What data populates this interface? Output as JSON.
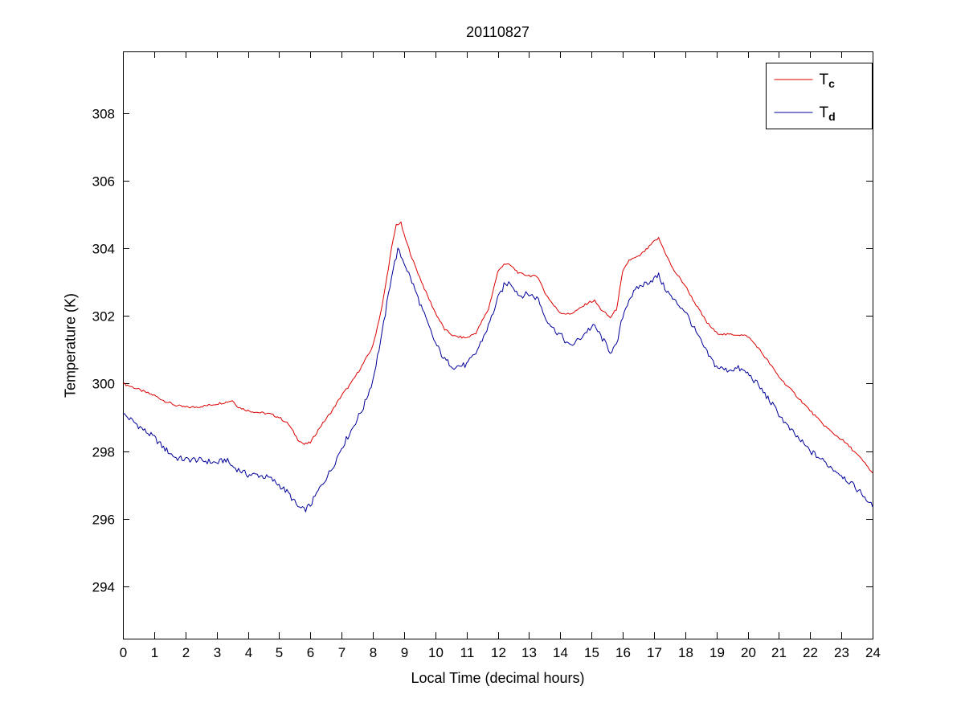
{
  "figure": {
    "background": "#ffffff"
  },
  "chart_data": {
    "type": "line",
    "title": "20110827",
    "xlabel": "Local Time (decimal hours)",
    "ylabel": "Temperature (K)",
    "xlim": [
      0,
      24
    ],
    "ylim": [
      292.45,
      309.83
    ],
    "xticks": [
      0,
      1,
      2,
      3,
      4,
      5,
      6,
      7,
      8,
      9,
      10,
      11,
      12,
      13,
      14,
      15,
      16,
      17,
      18,
      19,
      20,
      21,
      22,
      23,
      24
    ],
    "yticks": [
      294,
      296,
      298,
      300,
      302,
      304,
      306,
      308
    ],
    "grid": false,
    "legend_position": "top-right",
    "axis_color": "#000000",
    "series": [
      {
        "name": "T_c",
        "label_main": "T",
        "label_sub": "c",
        "color": "#dd0000",
        "noise_amp": 0.035,
        "points": [
          [
            0,
            300.0
          ],
          [
            0.3,
            299.9
          ],
          [
            0.7,
            299.75
          ],
          [
            1,
            299.65
          ],
          [
            1.3,
            299.5
          ],
          [
            1.7,
            299.35
          ],
          [
            2,
            299.3
          ],
          [
            2.3,
            299.3
          ],
          [
            2.7,
            299.35
          ],
          [
            3,
            299.4
          ],
          [
            3.3,
            299.45
          ],
          [
            3.5,
            299.5
          ],
          [
            3.7,
            299.3
          ],
          [
            4,
            299.2
          ],
          [
            4.3,
            299.15
          ],
          [
            4.7,
            299.1
          ],
          [
            5,
            299.0
          ],
          [
            5.3,
            298.8
          ],
          [
            5.6,
            298.35
          ],
          [
            5.8,
            298.2
          ],
          [
            6,
            298.25
          ],
          [
            6.3,
            298.7
          ],
          [
            6.7,
            299.2
          ],
          [
            7,
            299.65
          ],
          [
            7.3,
            300.0
          ],
          [
            7.7,
            300.6
          ],
          [
            8,
            301.1
          ],
          [
            8.3,
            302.3
          ],
          [
            8.6,
            304.0
          ],
          [
            8.75,
            304.7
          ],
          [
            8.9,
            304.75
          ],
          [
            9,
            304.4
          ],
          [
            9.3,
            303.6
          ],
          [
            9.7,
            302.7
          ],
          [
            10,
            302.1
          ],
          [
            10.3,
            301.6
          ],
          [
            10.6,
            301.4
          ],
          [
            11,
            301.35
          ],
          [
            11.3,
            301.5
          ],
          [
            11.7,
            302.2
          ],
          [
            12,
            303.3
          ],
          [
            12.2,
            303.55
          ],
          [
            12.4,
            303.5
          ],
          [
            12.7,
            303.25
          ],
          [
            13,
            303.2
          ],
          [
            13.3,
            303.15
          ],
          [
            13.5,
            302.7
          ],
          [
            13.8,
            302.3
          ],
          [
            14,
            302.1
          ],
          [
            14.3,
            302.05
          ],
          [
            14.6,
            302.2
          ],
          [
            14.9,
            302.4
          ],
          [
            15.1,
            302.45
          ],
          [
            15.3,
            302.2
          ],
          [
            15.6,
            301.95
          ],
          [
            15.8,
            302.2
          ],
          [
            16,
            303.3
          ],
          [
            16.2,
            303.65
          ],
          [
            16.5,
            303.75
          ],
          [
            16.8,
            304.0
          ],
          [
            17,
            304.2
          ],
          [
            17.15,
            304.3
          ],
          [
            17.3,
            304.0
          ],
          [
            17.6,
            303.4
          ],
          [
            18,
            302.9
          ],
          [
            18.3,
            302.4
          ],
          [
            18.7,
            301.8
          ],
          [
            19,
            301.5
          ],
          [
            19.3,
            301.45
          ],
          [
            19.7,
            301.45
          ],
          [
            20,
            301.4
          ],
          [
            20.3,
            301.1
          ],
          [
            20.7,
            300.6
          ],
          [
            21,
            300.2
          ],
          [
            21.3,
            299.9
          ],
          [
            21.7,
            299.5
          ],
          [
            22,
            299.2
          ],
          [
            22.3,
            298.9
          ],
          [
            22.7,
            298.55
          ],
          [
            23,
            298.35
          ],
          [
            23.3,
            298.1
          ],
          [
            23.7,
            297.7
          ],
          [
            24,
            297.35
          ]
        ]
      },
      {
        "name": "T_d",
        "label_main": "T",
        "label_sub": "d",
        "color": "#000099",
        "noise_amp": 0.09,
        "points": [
          [
            0,
            299.1
          ],
          [
            0.3,
            298.9
          ],
          [
            0.7,
            298.6
          ],
          [
            1,
            298.4
          ],
          [
            1.3,
            298.1
          ],
          [
            1.7,
            297.8
          ],
          [
            2,
            297.75
          ],
          [
            2.3,
            297.75
          ],
          [
            2.7,
            297.7
          ],
          [
            3,
            297.65
          ],
          [
            3.3,
            297.75
          ],
          [
            3.5,
            297.55
          ],
          [
            3.7,
            297.45
          ],
          [
            4,
            297.3
          ],
          [
            4.3,
            297.3
          ],
          [
            4.7,
            297.2
          ],
          [
            5,
            297.0
          ],
          [
            5.3,
            296.75
          ],
          [
            5.6,
            296.35
          ],
          [
            5.8,
            296.25
          ],
          [
            6,
            296.4
          ],
          [
            6.3,
            296.9
          ],
          [
            6.7,
            297.5
          ],
          [
            7,
            298.1
          ],
          [
            7.3,
            298.6
          ],
          [
            7.7,
            299.3
          ],
          [
            8,
            300.1
          ],
          [
            8.3,
            301.5
          ],
          [
            8.6,
            303.2
          ],
          [
            8.8,
            303.95
          ],
          [
            9,
            303.6
          ],
          [
            9.3,
            302.9
          ],
          [
            9.7,
            301.9
          ],
          [
            10,
            301.2
          ],
          [
            10.3,
            300.7
          ],
          [
            10.6,
            300.5
          ],
          [
            11,
            300.55
          ],
          [
            11.3,
            300.9
          ],
          [
            11.7,
            301.7
          ],
          [
            12,
            302.5
          ],
          [
            12.2,
            302.9
          ],
          [
            12.4,
            303.0
          ],
          [
            12.7,
            302.6
          ],
          [
            13,
            302.65
          ],
          [
            13.3,
            302.5
          ],
          [
            13.5,
            302.0
          ],
          [
            13.8,
            301.6
          ],
          [
            14,
            301.45
          ],
          [
            14.3,
            301.1
          ],
          [
            14.6,
            301.3
          ],
          [
            14.9,
            301.6
          ],
          [
            15.1,
            301.7
          ],
          [
            15.3,
            301.4
          ],
          [
            15.6,
            300.95
          ],
          [
            15.8,
            301.1
          ],
          [
            16,
            302.0
          ],
          [
            16.2,
            302.5
          ],
          [
            16.5,
            302.85
          ],
          [
            16.8,
            303.0
          ],
          [
            17,
            303.1
          ],
          [
            17.15,
            303.2
          ],
          [
            17.3,
            302.9
          ],
          [
            17.6,
            302.5
          ],
          [
            18,
            302.15
          ],
          [
            18.3,
            301.6
          ],
          [
            18.7,
            300.9
          ],
          [
            19,
            300.5
          ],
          [
            19.3,
            300.4
          ],
          [
            19.7,
            300.45
          ],
          [
            20,
            300.3
          ],
          [
            20.3,
            300.0
          ],
          [
            20.7,
            299.5
          ],
          [
            21,
            299.1
          ],
          [
            21.3,
            298.7
          ],
          [
            21.7,
            298.3
          ],
          [
            22,
            298.0
          ],
          [
            22.3,
            297.8
          ],
          [
            22.7,
            297.5
          ],
          [
            23,
            297.3
          ],
          [
            23.3,
            297.05
          ],
          [
            23.7,
            296.7
          ],
          [
            24,
            296.35
          ]
        ]
      }
    ]
  }
}
